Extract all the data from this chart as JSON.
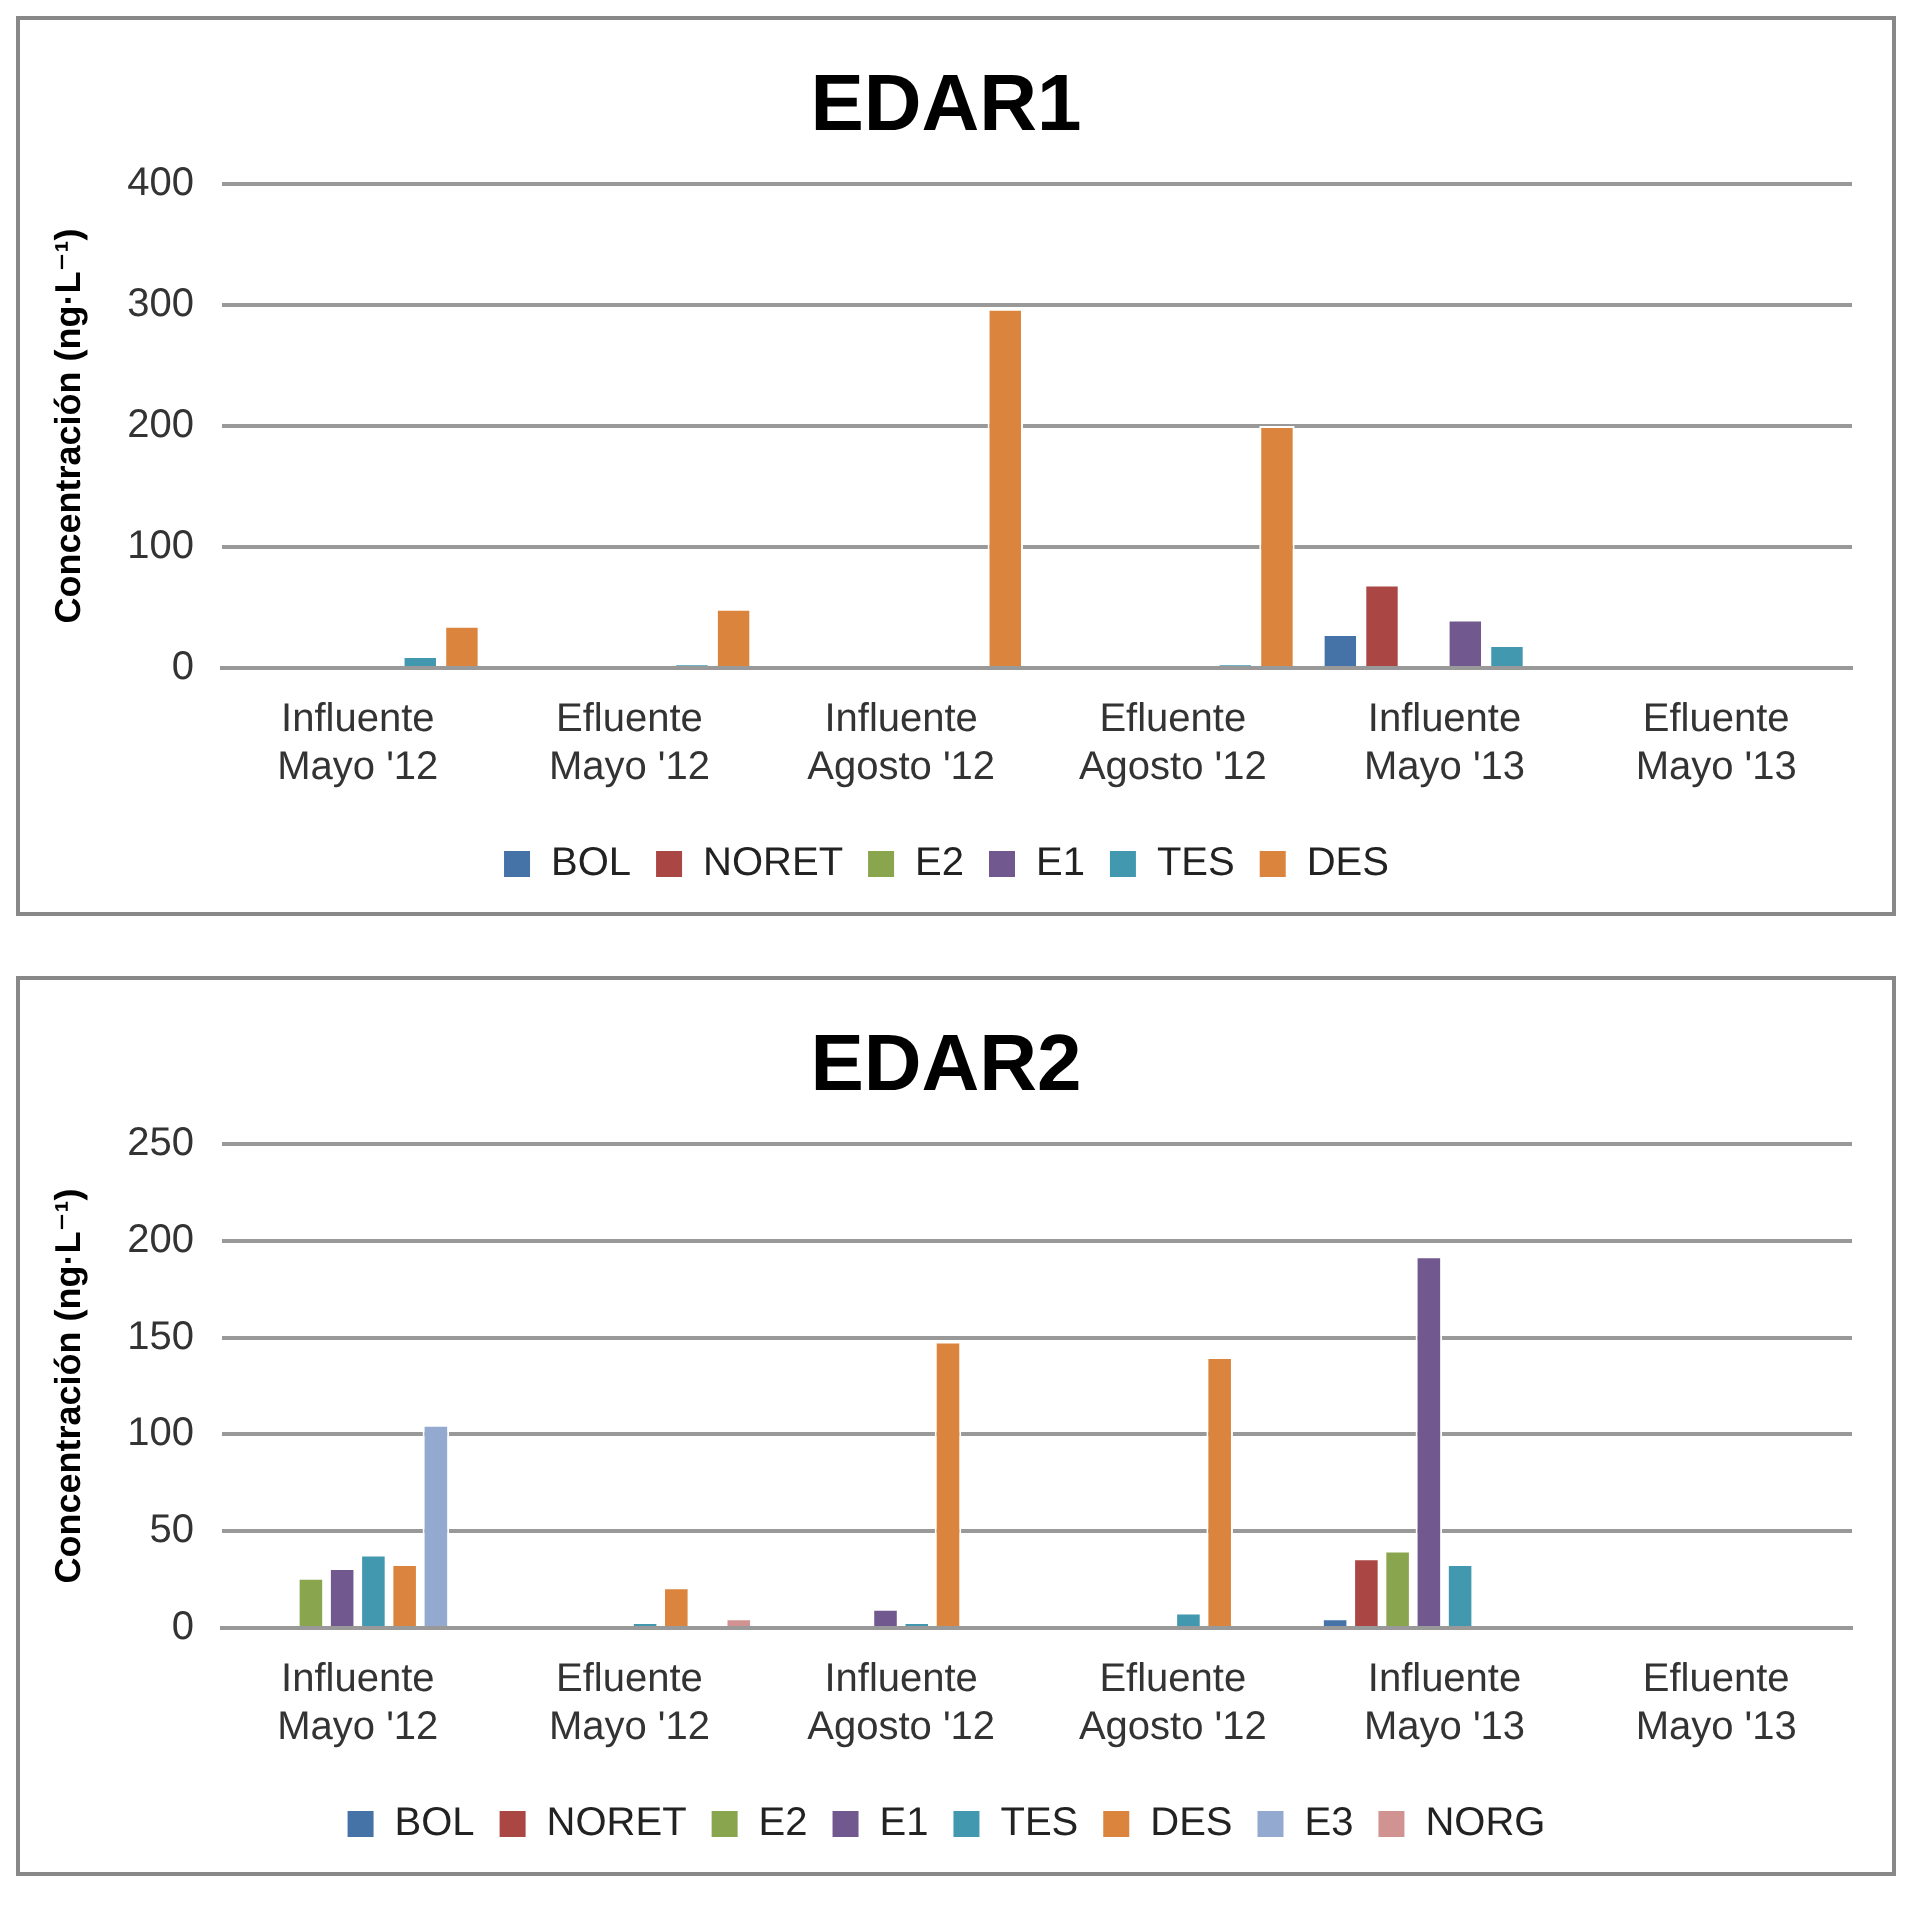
{
  "chart_data": [
    {
      "type": "bar",
      "title": "EDAR1",
      "ylabel": "Concentración (ng·L⁻¹)",
      "categories": [
        "Influente Mayo '12",
        "Efluente Mayo '12",
        "Influente Agosto '12",
        "Efluente Agosto '12",
        "Influente Mayo '13",
        "Efluente Mayo '13"
      ],
      "series": [
        {
          "name": "BOL",
          "color": "#4572a7",
          "values": [
            null,
            null,
            null,
            null,
            28,
            null
          ]
        },
        {
          "name": "NORET",
          "color": "#aa4643",
          "values": [
            null,
            null,
            null,
            null,
            69,
            null
          ]
        },
        {
          "name": "E2",
          "color": "#89a54e",
          "values": [
            null,
            null,
            null,
            null,
            null,
            null
          ]
        },
        {
          "name": "E1",
          "color": "#71588f",
          "values": [
            null,
            null,
            null,
            null,
            40,
            null
          ]
        },
        {
          "name": "TES",
          "color": "#4198af",
          "values": [
            10,
            3,
            null,
            3,
            19,
            null
          ]
        },
        {
          "name": "DES",
          "color": "#db843d",
          "values": [
            35,
            49,
            297,
            200,
            null,
            null
          ]
        }
      ],
      "ylim": [
        0,
        400
      ],
      "yticks": [
        0,
        100,
        200,
        300,
        400
      ],
      "grid": "y",
      "legend": "bottom"
    },
    {
      "type": "bar",
      "title": "EDAR2",
      "ylabel": "Concentración (ng·L⁻¹)",
      "categories": [
        "Influente Mayo '12",
        "Efluente Mayo '12",
        "Influente Agosto '12",
        "Efluente Agosto '12",
        "Influente Mayo '13",
        "Efluente Mayo '13"
      ],
      "series": [
        {
          "name": "BOL",
          "color": "#4572a7",
          "values": [
            null,
            null,
            null,
            null,
            5,
            null
          ]
        },
        {
          "name": "NORET",
          "color": "#aa4643",
          "values": [
            null,
            null,
            null,
            null,
            36,
            null
          ]
        },
        {
          "name": "E2",
          "color": "#89a54e",
          "values": [
            26,
            null,
            null,
            null,
            40,
            null
          ]
        },
        {
          "name": "E1",
          "color": "#71588f",
          "values": [
            31,
            null,
            10,
            null,
            192,
            null
          ]
        },
        {
          "name": "TES",
          "color": "#4198af",
          "values": [
            38,
            3,
            3,
            8,
            33,
            null
          ]
        },
        {
          "name": "DES",
          "color": "#db843d",
          "values": [
            33,
            21,
            148,
            140,
            null,
            null
          ]
        },
        {
          "name": "E3",
          "color": "#93a9cf",
          "values": [
            105,
            null,
            null,
            null,
            null,
            null
          ]
        },
        {
          "name": "NORG",
          "color": "#d19392",
          "values": [
            null,
            5,
            null,
            null,
            null,
            null
          ]
        }
      ],
      "ylim": [
        0,
        250
      ],
      "yticks": [
        0,
        50,
        100,
        150,
        200,
        250
      ],
      "grid": "y",
      "legend": "bottom"
    }
  ]
}
